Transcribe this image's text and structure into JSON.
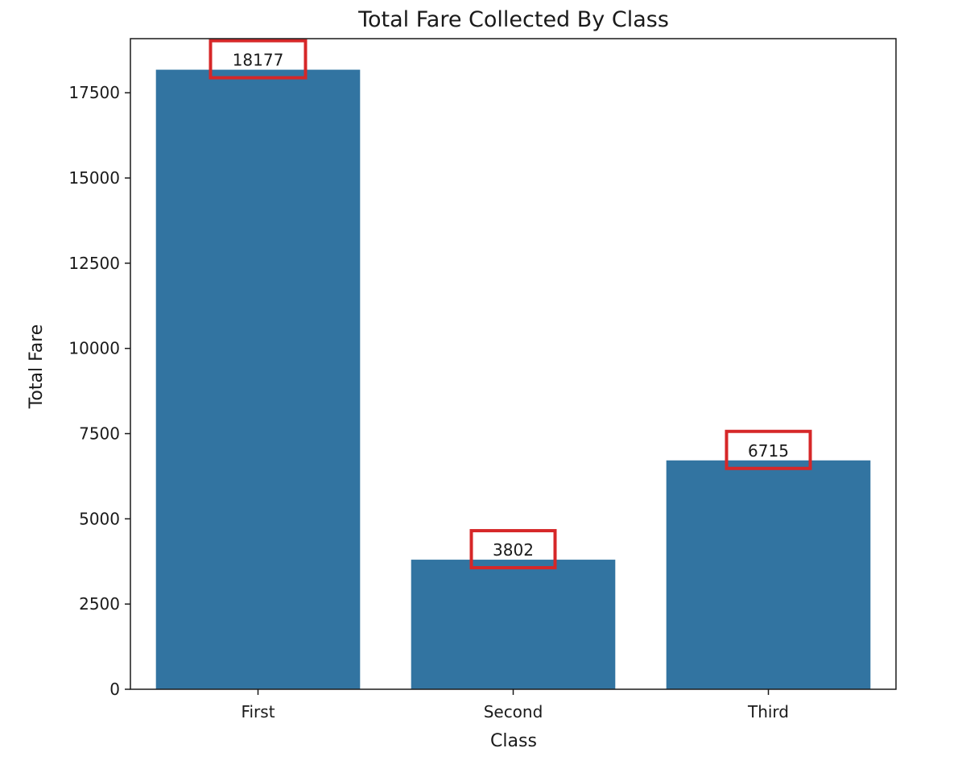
{
  "chart_data": {
    "type": "bar",
    "title": "Total Fare Collected By Class",
    "xlabel": "Class",
    "ylabel": "Total Fare",
    "categories": [
      "First",
      "Second",
      "Third"
    ],
    "values": [
      18177,
      3802,
      6715
    ],
    "data_labels": [
      "18177",
      "3802",
      "6715"
    ],
    "ylim": [
      0,
      19088
    ],
    "yticks": [
      0,
      2500,
      5000,
      7500,
      10000,
      12500,
      15000,
      17500
    ],
    "ytick_labels": [
      "0",
      "2500",
      "5000",
      "7500",
      "10000",
      "12500",
      "15000",
      "17500"
    ],
    "grid": false,
    "legend": "none",
    "bar_color": "#3274a1",
    "highlight_box_color": "#d62728",
    "highlighted_labels": [
      "18177",
      "3802",
      "6715"
    ]
  }
}
